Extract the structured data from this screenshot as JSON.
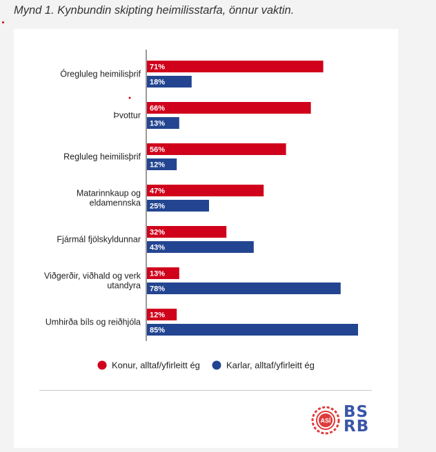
{
  "figure": {
    "caption": "Mynd 1. Kynbundin skipting heimilisstarfa, önnur vaktin."
  },
  "colors": {
    "women": "#d0021b",
    "men": "#234591",
    "axis": "#333333",
    "logo_red": "#e03a3a",
    "logo_blue": "#3a56a8"
  },
  "chart_data": {
    "type": "bar",
    "orientation": "horizontal",
    "categories": [
      "Óregluleg heimilisþrif",
      "Þvottur",
      "Regluleg heimilisþrif",
      "Matarinnkaup og eldamennska",
      "Fjármál fjölskyldunnar",
      "Viðgerðir, viðhald og verk utandyra",
      "Umhirða bíls og reiðhjóla"
    ],
    "category_lines": [
      [
        "Óregluleg heimilisþrif"
      ],
      [
        "Þvottur"
      ],
      [
        "Regluleg heimilisþrif"
      ],
      [
        "Matarinnkaup og",
        "eldamennska"
      ],
      [
        "Fjármál fjölskyldunnar"
      ],
      [
        "Viðgerðir, viðhald og verk",
        "utandyra"
      ],
      [
        "Umhirða bíls og reiðhjóla"
      ]
    ],
    "series": [
      {
        "name": "Konur, alltaf/yfirleitt ég",
        "values": [
          71,
          66,
          56,
          47,
          32,
          13,
          12
        ]
      },
      {
        "name": "Karlar, alltaf/yfirleitt ég",
        "values": [
          18,
          13,
          12,
          25,
          43,
          78,
          85
        ]
      }
    ],
    "value_suffix": "%",
    "xlim": [
      0,
      100
    ],
    "legend_position": "bottom"
  },
  "logos": {
    "asi": "ASÍ",
    "bsrb_line1": "BS",
    "bsrb_line2": "RB"
  }
}
